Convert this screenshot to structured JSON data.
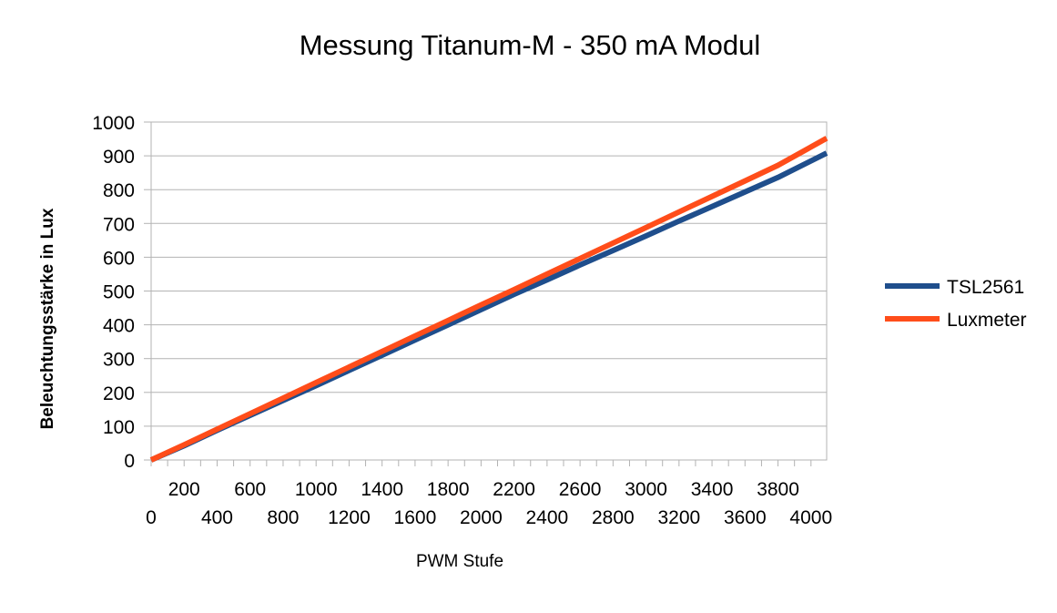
{
  "chart_data": {
    "type": "line",
    "title": "Messung Titanum-M - 350 mA Modul",
    "xlabel": "PWM Stufe",
    "ylabel": "Beleuchtungsstärke in Lux",
    "xlim": [
      0,
      4095
    ],
    "ylim": [
      0,
      1000
    ],
    "y_ticks": [
      "0",
      "100",
      "200",
      "300",
      "400",
      "500",
      "600",
      "700",
      "800",
      "900",
      "1000"
    ],
    "x_ticks_upper": [
      "200",
      "600",
      "1000",
      "1400",
      "1800",
      "2200",
      "2600",
      "3000",
      "3400",
      "3800"
    ],
    "x_ticks_lower": [
      "0",
      "400",
      "800",
      "1200",
      "1600",
      "2000",
      "2400",
      "2800",
      "3200",
      "3600",
      "4000"
    ],
    "grid": "horizontal",
    "legend_position": "right",
    "series": [
      {
        "name": "TSL2561",
        "color": "#1f4e8c",
        "x": [
          0,
          200,
          400,
          600,
          800,
          1000,
          1200,
          1400,
          1600,
          1800,
          2000,
          2200,
          2400,
          2600,
          2800,
          3000,
          3200,
          3400,
          3600,
          3800,
          4095
        ],
        "values": [
          0,
          42,
          88,
          132,
          176,
          220,
          265,
          310,
          355,
          400,
          445,
          490,
          533,
          577,
          620,
          663,
          707,
          750,
          793,
          836,
          908
        ]
      },
      {
        "name": "Luxmeter",
        "color": "#ff4d1a",
        "x": [
          0,
          200,
          400,
          600,
          800,
          1000,
          1200,
          1400,
          1600,
          1800,
          2000,
          2200,
          2400,
          2600,
          2800,
          3000,
          3200,
          3400,
          3600,
          3800,
          4095
        ],
        "values": [
          0,
          45,
          91,
          137,
          183,
          229,
          275,
          321,
          367,
          413,
          459,
          504,
          550,
          596,
          642,
          688,
          734,
          780,
          826,
          872,
          952
        ]
      }
    ]
  }
}
